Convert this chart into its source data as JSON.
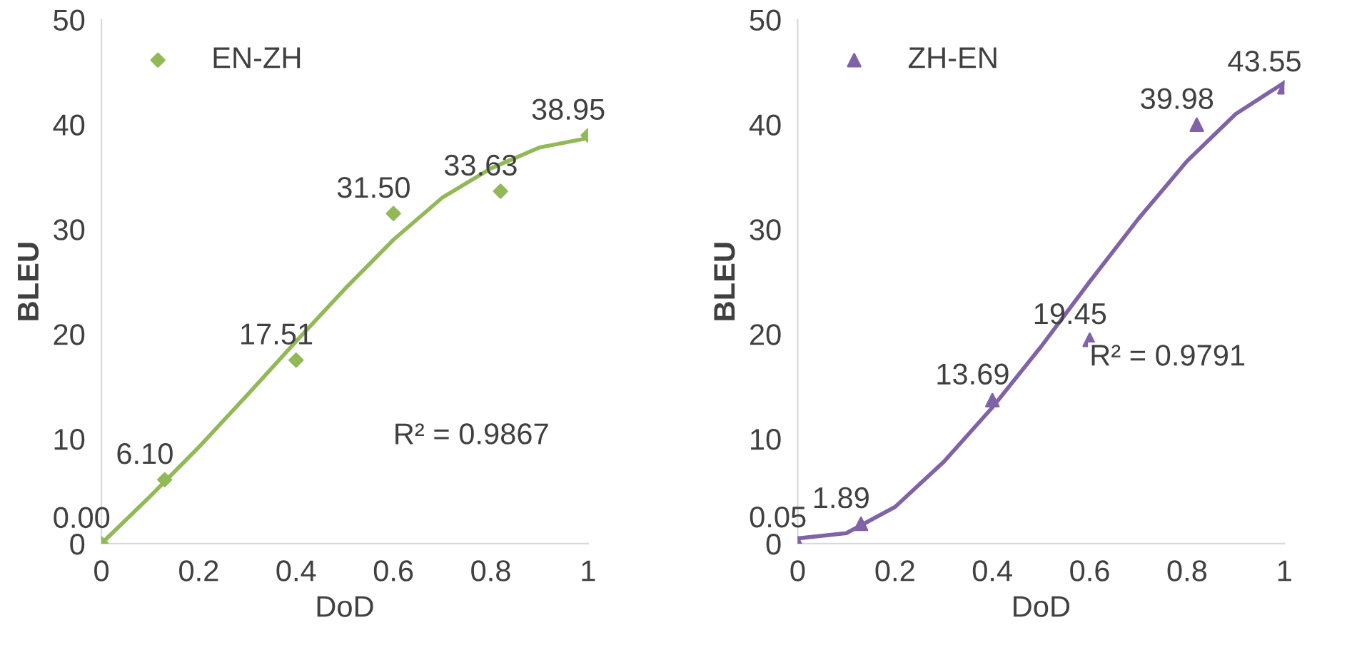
{
  "chart_data": [
    {
      "type": "scatter",
      "xlabel": "DoD",
      "ylabel": "BLEU",
      "xlim": [
        0,
        1
      ],
      "ylim": [
        0,
        50
      ],
      "xticks": [
        0,
        0.2,
        0.4,
        0.6,
        0.8,
        1
      ],
      "yticks": [
        0,
        10,
        20,
        30,
        40,
        50
      ],
      "grid": false,
      "legend": "top left",
      "series": [
        {
          "name": "EN-ZH",
          "color": "#92b957",
          "marker": "diamond",
          "x": [
            0,
            0.13,
            0.4,
            0.6,
            0.82,
            1
          ],
          "values": [
            0.0,
            6.1,
            17.51,
            31.5,
            33.63,
            38.95
          ],
          "value_labels": [
            "0.00",
            "6.10",
            "17.51",
            "31.50",
            "33.63",
            "38.95"
          ]
        },
        {
          "type": "line",
          "color": "#92b957",
          "x": [
            0,
            0.1,
            0.2,
            0.3,
            0.4,
            0.5,
            0.6,
            0.7,
            0.8,
            0.9,
            1
          ],
          "values": [
            0,
            4.5,
            9.2,
            14.2,
            19.3,
            24.3,
            29,
            33,
            35.8,
            37.8,
            38.7
          ]
        }
      ],
      "annotations": [
        "R² = 0.9867"
      ]
    },
    {
      "type": "scatter",
      "xlabel": "DoD",
      "ylabel": "BLEU",
      "xlim": [
        0,
        1
      ],
      "ylim": [
        0,
        50
      ],
      "xticks": [
        0,
        0.2,
        0.4,
        0.6,
        0.8,
        1
      ],
      "yticks": [
        0,
        10,
        20,
        30,
        40,
        50
      ],
      "grid": false,
      "legend": "top left",
      "series": [
        {
          "name": "ZH-EN",
          "color": "#7f62a8",
          "marker": "triangle",
          "x": [
            0,
            0.13,
            0.4,
            0.6,
            0.82,
            1
          ],
          "values": [
            0.05,
            1.89,
            13.69,
            19.45,
            39.98,
            43.55
          ],
          "value_labels": [
            "0.05",
            "1.89",
            "13.69",
            "19.45",
            "39.98",
            "43.55"
          ]
        },
        {
          "type": "line",
          "color": "#7f62a8",
          "x": [
            0,
            0.1,
            0.2,
            0.3,
            0.4,
            0.5,
            0.6,
            0.7,
            0.8,
            0.9,
            1
          ],
          "values": [
            0.5,
            1,
            3.5,
            7.8,
            13,
            18.8,
            25,
            31,
            36.5,
            41,
            44
          ]
        }
      ],
      "annotations": [
        "R² = 0.9791"
      ]
    }
  ]
}
